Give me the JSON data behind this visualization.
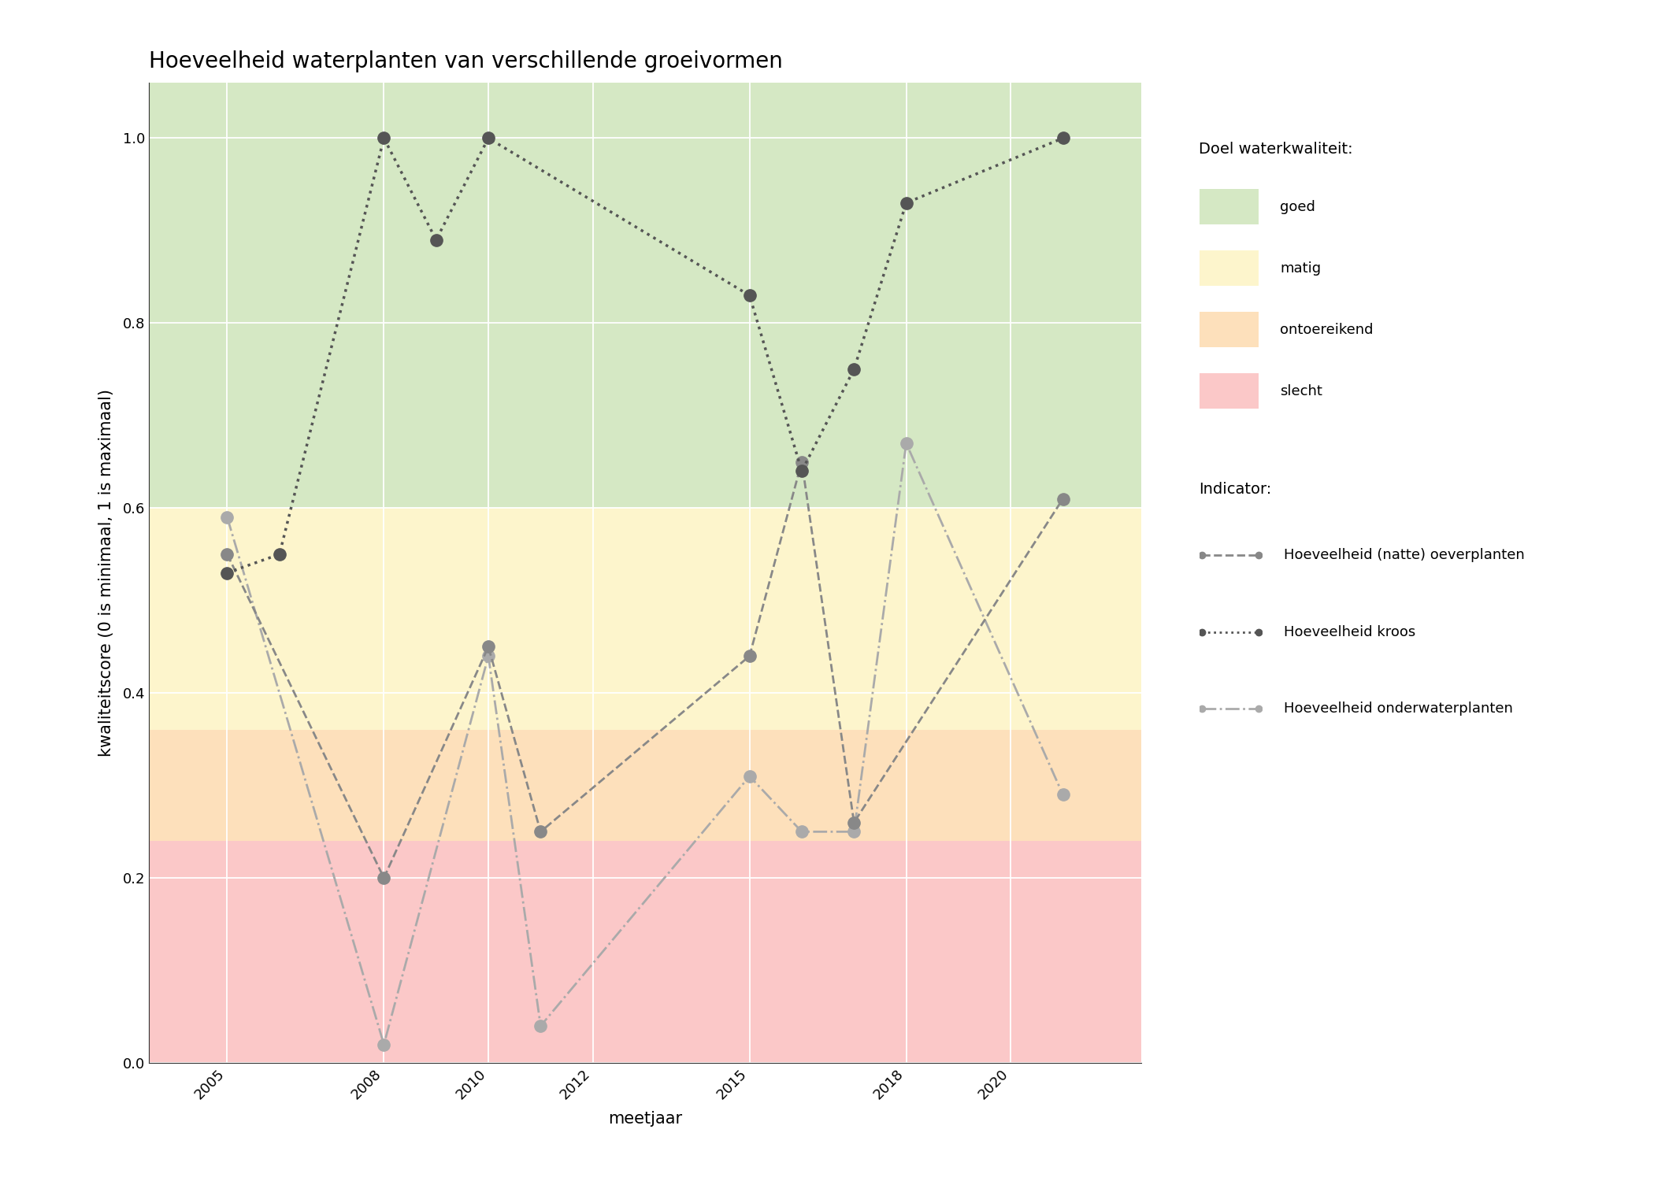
{
  "title": "Hoeveelheid waterplanten van verschillende groeivormen",
  "xlabel": "meetjaar",
  "ylabel": "kwaliteitscore (0 is minimaal, 1 is maximaal)",
  "xlim": [
    2003.5,
    2022.5
  ],
  "ylim": [
    0.0,
    1.06
  ],
  "xticks": [
    2005,
    2008,
    2010,
    2012,
    2015,
    2018,
    2020
  ],
  "yticks": [
    0.0,
    0.2,
    0.4,
    0.6,
    0.8,
    1.0
  ],
  "bg_color": "#ffffff",
  "plot_bg_color": "#ffffff",
  "background_bands": [
    {
      "ymin": 0.6,
      "ymax": 1.06,
      "color": "#d5e8c4",
      "label": "goed"
    },
    {
      "ymin": 0.36,
      "ymax": 0.6,
      "color": "#fdf5cc",
      "label": "matig"
    },
    {
      "ymin": 0.24,
      "ymax": 0.36,
      "color": "#fde0bb",
      "label": "ontoereikend"
    },
    {
      "ymin": 0.0,
      "ymax": 0.24,
      "color": "#fbc8c8",
      "label": "slecht"
    }
  ],
  "series": [
    {
      "name": "Hoeveelheid (natte) oeverplanten",
      "x": [
        2005,
        2008,
        2010,
        2011,
        2015,
        2016,
        2017,
        2021
      ],
      "y": [
        0.55,
        0.2,
        0.45,
        0.25,
        0.44,
        0.65,
        0.26,
        0.61
      ],
      "color": "#888888",
      "linestyle": "--",
      "marker": "o",
      "markersize": 11,
      "linewidth": 2.0,
      "zorder": 3
    },
    {
      "name": "Hoeveelheid kroos",
      "x": [
        2005,
        2006,
        2008,
        2009,
        2010,
        2015,
        2016,
        2017,
        2018,
        2021
      ],
      "y": [
        0.53,
        0.55,
        1.0,
        0.89,
        1.0,
        0.83,
        0.64,
        0.75,
        0.93,
        1.0
      ],
      "color": "#555555",
      "linestyle": ":",
      "marker": "o",
      "markersize": 11,
      "linewidth": 2.5,
      "zorder": 4
    },
    {
      "name": "Hoeveelheid onderwaterplanten",
      "x": [
        2005,
        2008,
        2010,
        2011,
        2015,
        2016,
        2017,
        2018,
        2021
      ],
      "y": [
        0.59,
        0.02,
        0.44,
        0.04,
        0.31,
        0.25,
        0.25,
        0.67,
        0.29
      ],
      "color": "#aaaaaa",
      "linestyle": "-.",
      "marker": "o",
      "markersize": 11,
      "linewidth": 2.0,
      "zorder": 2
    }
  ],
  "legend_quality_title": "Doel waterkwaliteit:",
  "legend_indicator_title": "Indicator:",
  "title_fontsize": 20,
  "label_fontsize": 15,
  "tick_fontsize": 13,
  "legend_fontsize": 13
}
